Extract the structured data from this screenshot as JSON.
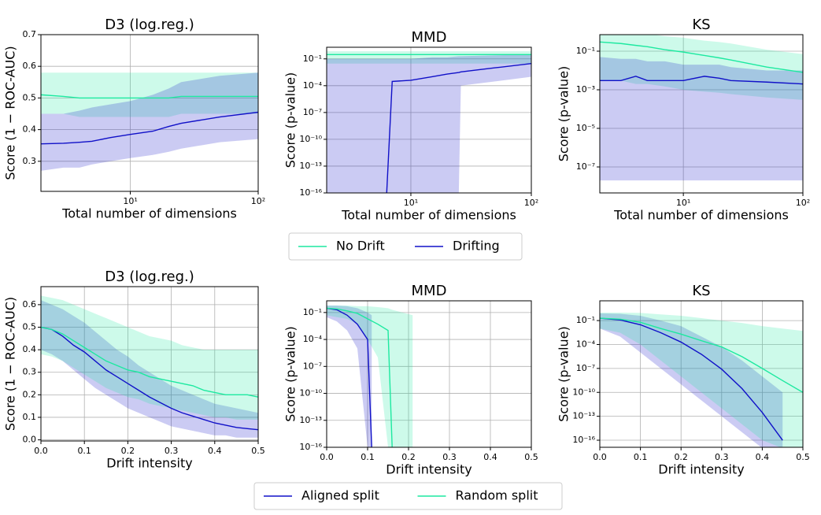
{
  "chart_data": [
    {
      "type": "line",
      "title": "D3 (log.reg.)",
      "xlabel": "Total number of dimensions",
      "ylabel": "Score (1 − ROC-AUC)",
      "xscale": "log",
      "yscale": "linear",
      "grid": true,
      "xlim": [
        2,
        100
      ],
      "ylim": [
        0.205,
        0.7
      ],
      "xticks": [
        {
          "value": 10,
          "label": "10¹"
        },
        {
          "value": 100,
          "label": "10²"
        }
      ],
      "yticks": [
        0.3,
        0.4,
        0.5,
        0.6,
        0.7
      ],
      "series": [
        {
          "name": "No Drift",
          "color": "#1de9a0",
          "x": [
            2,
            3,
            4,
            5,
            7,
            10,
            15,
            20,
            25,
            50,
            100
          ],
          "values": [
            0.51,
            0.505,
            0.5,
            0.5,
            0.5,
            0.5,
            0.5,
            0.5,
            0.505,
            0.505,
            0.505
          ],
          "lower": [
            0.45,
            0.45,
            0.44,
            0.44,
            0.44,
            0.44,
            0.44,
            0.44,
            0.45,
            0.45,
            0.45
          ],
          "upper": [
            0.58,
            0.58,
            0.58,
            0.58,
            0.58,
            0.58,
            0.58,
            0.58,
            0.58,
            0.58,
            0.58
          ]
        },
        {
          "name": "Drifting",
          "color": "#1010c8",
          "x": [
            2,
            3,
            4,
            5,
            7,
            10,
            15,
            20,
            25,
            50,
            100
          ],
          "values": [
            0.355,
            0.357,
            0.36,
            0.363,
            0.375,
            0.385,
            0.395,
            0.41,
            0.42,
            0.44,
            0.455
          ],
          "lower": [
            0.27,
            0.28,
            0.28,
            0.29,
            0.3,
            0.31,
            0.32,
            0.33,
            0.34,
            0.36,
            0.37
          ],
          "upper": [
            0.45,
            0.45,
            0.46,
            0.47,
            0.48,
            0.49,
            0.51,
            0.53,
            0.55,
            0.57,
            0.58
          ]
        }
      ]
    },
    {
      "type": "line",
      "title": "MMD",
      "xlabel": "Total number of dimensions",
      "ylabel": "Score (p-value)",
      "xscale": "log",
      "yscale": "log",
      "grid": true,
      "xlim": [
        2,
        100
      ],
      "ylim": [
        1e-16,
        2
      ],
      "xticks": [
        {
          "value": 10,
          "label": "10¹"
        },
        {
          "value": 100,
          "label": "10²"
        }
      ],
      "yticks": [
        {
          "value": 0.1,
          "label": "10⁻¹"
        },
        {
          "value": 0.0001,
          "label": "10⁻⁴"
        },
        {
          "value": 1e-07,
          "label": "10⁻⁷"
        },
        {
          "value": 1e-10,
          "label": "10⁻¹⁰"
        },
        {
          "value": 1e-13,
          "label": "10⁻¹³"
        },
        {
          "value": 1e-16,
          "label": "10⁻¹⁶"
        }
      ],
      "series": [
        {
          "name": "No Drift",
          "color": "#1de9a0",
          "x": [
            2,
            3,
            4,
            5,
            7,
            10,
            15,
            20,
            25,
            50,
            100
          ],
          "values": [
            0.3,
            0.3,
            0.3,
            0.3,
            0.3,
            0.3,
            0.3,
            0.3,
            0.3,
            0.3,
            0.3
          ],
          "lower": [
            0.03,
            0.03,
            0.03,
            0.03,
            0.03,
            0.03,
            0.03,
            0.03,
            0.03,
            0.03,
            0.03
          ],
          "upper": [
            0.7,
            0.7,
            0.7,
            0.7,
            0.7,
            0.7,
            0.7,
            0.7,
            0.7,
            0.7,
            0.7
          ]
        },
        {
          "name": "Drifting",
          "color": "#1010c8",
          "x": [
            2,
            4,
            6.3,
            7,
            10,
            15,
            20,
            25,
            26,
            50,
            100
          ],
          "values": [
            null,
            null,
            1e-16,
            0.0003,
            0.0004,
            0.001,
            0.002,
            0.003,
            0.0035,
            0.01,
            0.03
          ],
          "lower": [
            1e-16,
            1e-16,
            1e-16,
            1e-16,
            1e-16,
            1e-16,
            1e-16,
            1e-16,
            0.0001,
            0.0003,
            0.001
          ],
          "upper": [
            0.1,
            0.1,
            0.1,
            0.1,
            0.1,
            0.15,
            0.15,
            0.2,
            0.2,
            0.25,
            0.3
          ]
        }
      ]
    },
    {
      "type": "line",
      "title": "KS",
      "xlabel": "Total number of dimensions",
      "ylabel": "Score (p-value)",
      "xscale": "log",
      "yscale": "log",
      "grid": true,
      "xlim": [
        2,
        100
      ],
      "ylim": [
        4.5e-09,
        0.72
      ],
      "xticks": [
        {
          "value": 10,
          "label": "10¹"
        },
        {
          "value": 100,
          "label": "10²"
        }
      ],
      "yticks": [
        {
          "value": 0.1,
          "label": "10⁻¹"
        },
        {
          "value": 0.001,
          "label": "10⁻³"
        },
        {
          "value": 1e-05,
          "label": "10⁻⁵"
        },
        {
          "value": 1e-07,
          "label": "10⁻⁷"
        }
      ],
      "series": [
        {
          "name": "No Drift",
          "color": "#1de9a0",
          "x": [
            2,
            3,
            4,
            5,
            7,
            10,
            15,
            20,
            25,
            50,
            100
          ],
          "values": [
            0.3,
            0.25,
            0.2,
            0.17,
            0.12,
            0.09,
            0.06,
            0.045,
            0.035,
            0.015,
            0.008
          ],
          "lower": [
            0.003,
            0.003,
            0.002,
            0.002,
            0.0015,
            0.001,
            0.0008,
            0.0007,
            0.0006,
            0.0004,
            0.0003
          ],
          "upper": [
            1,
            1,
            0.9,
            0.8,
            0.6,
            0.5,
            0.35,
            0.3,
            0.25,
            0.12,
            0.07
          ]
        },
        {
          "name": "Drifting",
          "color": "#1010c8",
          "x": [
            2,
            3,
            4,
            5,
            7,
            10,
            15,
            20,
            25,
            50,
            100
          ],
          "values": [
            0.003,
            0.003,
            0.005,
            0.003,
            0.003,
            0.003,
            0.005,
            0.004,
            0.003,
            0.0025,
            0.002
          ],
          "lower": [
            2e-08,
            2e-08,
            2e-08,
            2e-08,
            2e-08,
            2e-08,
            2e-08,
            2e-08,
            2e-08,
            2e-08,
            2e-08
          ],
          "upper": [
            0.05,
            0.04,
            0.04,
            0.03,
            0.03,
            0.02,
            0.02,
            0.02,
            0.015,
            0.01,
            0.01
          ]
        }
      ]
    },
    {
      "type": "line",
      "title": "D3 (log.reg.)",
      "xlabel": "Drift intensity",
      "ylabel": "Score (1 − ROC-AUC)",
      "xscale": "linear",
      "yscale": "linear",
      "grid": true,
      "xlim": [
        0,
        0.5
      ],
      "ylim": [
        -0.005,
        0.68
      ],
      "xticks": [
        {
          "value": 0,
          "label": "0.0"
        },
        0.1,
        0.2,
        0.3,
        0.4,
        0.5
      ],
      "yticks": [
        {
          "value": 0,
          "label": "0.0"
        },
        0.1,
        0.2,
        0.3,
        0.4,
        0.5,
        0.6
      ],
      "series": [
        {
          "name": "Aligned split",
          "color": "#1010c8",
          "x": [
            0,
            0.025,
            0.05,
            0.075,
            0.1,
            0.125,
            0.15,
            0.175,
            0.2,
            0.225,
            0.25,
            0.275,
            0.3,
            0.325,
            0.35,
            0.375,
            0.4,
            0.425,
            0.45,
            0.475,
            0.5
          ],
          "values": [
            0.5,
            0.49,
            0.46,
            0.42,
            0.39,
            0.35,
            0.31,
            0.28,
            0.25,
            0.22,
            0.19,
            0.165,
            0.14,
            0.12,
            0.105,
            0.09,
            0.075,
            0.065,
            0.055,
            0.05,
            0.045
          ],
          "lower": [
            0.4,
            0.38,
            0.35,
            0.31,
            0.27,
            0.23,
            0.2,
            0.17,
            0.14,
            0.12,
            0.1,
            0.08,
            0.06,
            0.05,
            0.04,
            0.03,
            0.02,
            0.02,
            0.01,
            0.01,
            0.01
          ],
          "upper": [
            0.62,
            0.6,
            0.58,
            0.55,
            0.52,
            0.48,
            0.44,
            0.4,
            0.37,
            0.33,
            0.3,
            0.27,
            0.24,
            0.22,
            0.2,
            0.18,
            0.16,
            0.15,
            0.14,
            0.13,
            0.12
          ]
        },
        {
          "name": "Random split",
          "color": "#1de9a0",
          "x": [
            0,
            0.025,
            0.05,
            0.075,
            0.1,
            0.125,
            0.15,
            0.175,
            0.2,
            0.225,
            0.25,
            0.275,
            0.3,
            0.325,
            0.35,
            0.375,
            0.4,
            0.425,
            0.45,
            0.475,
            0.5
          ],
          "values": [
            0.5,
            0.49,
            0.47,
            0.44,
            0.41,
            0.38,
            0.35,
            0.33,
            0.31,
            0.3,
            0.28,
            0.27,
            0.26,
            0.25,
            0.24,
            0.22,
            0.21,
            0.2,
            0.2,
            0.2,
            0.19
          ],
          "lower": [
            0.38,
            0.37,
            0.35,
            0.32,
            0.29,
            0.26,
            0.23,
            0.21,
            0.19,
            0.18,
            0.16,
            0.15,
            0.14,
            0.13,
            0.12,
            0.11,
            0.1,
            0.1,
            0.09,
            0.09,
            0.09
          ],
          "upper": [
            0.64,
            0.63,
            0.62,
            0.6,
            0.58,
            0.56,
            0.54,
            0.52,
            0.5,
            0.48,
            0.46,
            0.45,
            0.44,
            0.42,
            0.41,
            0.4,
            0.4,
            0.4,
            0.4,
            0.4,
            0.4
          ]
        }
      ]
    },
    {
      "type": "line",
      "title": "MMD",
      "xlabel": "Drift intensity",
      "ylabel": "Score (p-value)",
      "xscale": "linear",
      "yscale": "log",
      "grid": true,
      "xlim": [
        0,
        0.5
      ],
      "ylim": [
        1e-16,
        2
      ],
      "xticks": [
        {
          "value": 0,
          "label": "0.0"
        },
        0.1,
        0.2,
        0.3,
        0.4,
        0.5
      ],
      "yticks": [
        {
          "value": 0.1,
          "label": "10⁻¹"
        },
        {
          "value": 0.0001,
          "label": "10⁻⁴"
        },
        {
          "value": 1e-07,
          "label": "10⁻⁷"
        },
        {
          "value": 1e-10,
          "label": "10⁻¹⁰"
        },
        {
          "value": 1e-13,
          "label": "10⁻¹³"
        },
        {
          "value": 1e-16,
          "label": "10⁻¹⁶"
        }
      ],
      "series": [
        {
          "name": "Aligned split",
          "color": "#1010c8",
          "x": [
            0,
            0.025,
            0.05,
            0.075,
            0.1,
            0.11
          ],
          "values": [
            0.3,
            0.2,
            0.05,
            0.005,
            0.0001,
            1e-16
          ],
          "lower": [
            0.03,
            0.01,
            0.001,
            1e-05,
            1e-16,
            1e-16
          ],
          "upper": [
            0.6,
            0.6,
            0.5,
            0.3,
            0.1,
            0.05
          ]
        },
        {
          "name": "Random split",
          "color": "#1de9a0",
          "x": [
            0,
            0.025,
            0.05,
            0.075,
            0.1,
            0.125,
            0.15,
            0.16,
            0.21
          ],
          "values": [
            0.3,
            0.25,
            0.15,
            0.08,
            0.02,
            0.005,
            0.001,
            1e-16,
            null
          ],
          "lower": [
            0.05,
            0.03,
            0.02,
            0.005,
            0.0001,
            1e-06,
            1e-16,
            1e-16,
            1e-16
          ],
          "upper": [
            0.6,
            0.6,
            0.6,
            0.5,
            0.5,
            0.4,
            0.3,
            0.2,
            0.05
          ]
        }
      ]
    },
    {
      "type": "line",
      "title": "KS",
      "xlabel": "Drift intensity",
      "ylabel": "Score (p-value)",
      "xscale": "linear",
      "yscale": "log",
      "grid": true,
      "xlim": [
        0,
        0.5
      ],
      "ylim": [
        1.3e-17,
        30
      ],
      "xticks": [
        {
          "value": 0,
          "label": "0.0"
        },
        0.1,
        0.2,
        0.3,
        0.4,
        0.5
      ],
      "yticks": [
        {
          "value": 0.1,
          "label": "10⁻¹"
        },
        {
          "value": 0.0001,
          "label": "10⁻⁴"
        },
        {
          "value": 1e-07,
          "label": "10⁻⁷"
        },
        {
          "value": 1e-10,
          "label": "10⁻¹⁰"
        },
        {
          "value": 1e-13,
          "label": "10⁻¹³"
        },
        {
          "value": 1e-16,
          "label": "10⁻¹⁶"
        }
      ],
      "series": [
        {
          "name": "Aligned split",
          "color": "#1010c8",
          "x": [
            0,
            0.05,
            0.1,
            0.15,
            0.2,
            0.25,
            0.3,
            0.35,
            0.4,
            0.45
          ],
          "values": [
            0.2,
            0.12,
            0.03,
            0.003,
            0.0002,
            6e-06,
            8e-08,
            3e-10,
            3e-13,
            1e-16
          ],
          "lower": [
            0.01,
            0.001,
            1e-05,
            1e-07,
            1e-09,
            1e-11,
            1e-13,
            1e-15,
            1e-17,
            1e-17
          ],
          "upper": [
            0.8,
            0.7,
            0.4,
            0.1,
            0.02,
            0.001,
            5e-05,
            1e-06,
            1e-08,
            1e-10
          ]
        },
        {
          "name": "Random split",
          "color": "#1de9a0",
          "x": [
            0,
            0.05,
            0.1,
            0.15,
            0.2,
            0.25,
            0.3,
            0.35,
            0.4,
            0.45,
            0.5
          ],
          "values": [
            0.2,
            0.15,
            0.06,
            0.01,
            0.002,
            0.0003,
            5e-05,
            3e-06,
            1e-07,
            3e-09,
            1e-10
          ],
          "lower": [
            0.01,
            0.003,
            0.0001,
            1e-06,
            1e-08,
            1e-10,
            1e-12,
            1e-14,
            1e-16,
            1e-17,
            1e-17
          ],
          "upper": [
            1,
            1,
            0.9,
            0.6,
            0.4,
            0.2,
            0.1,
            0.05,
            0.02,
            0.01,
            0.005
          ]
        }
      ]
    }
  ]
}
